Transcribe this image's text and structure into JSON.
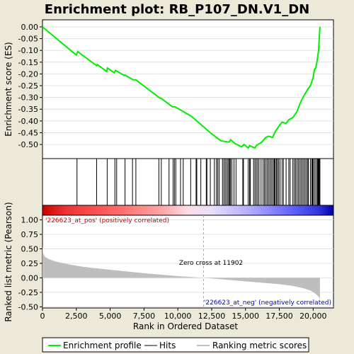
{
  "chart_data": [
    {
      "type": "line",
      "title": "Enrichment plot: RB_P107_DN.V1_DN",
      "ylabel": "Enrichment score (ES)",
      "ylim": [
        -0.56,
        0.03
      ],
      "yticks": [
        "0.00",
        "-0.05",
        "-0.10",
        "-0.15",
        "-0.20",
        "-0.25",
        "-0.30",
        "-0.35",
        "-0.40",
        "-0.45",
        "-0.50"
      ],
      "ytick_values": [
        0.0,
        -0.05,
        -0.1,
        -0.15,
        -0.2,
        -0.25,
        -0.3,
        -0.35,
        -0.4,
        -0.45,
        -0.5
      ],
      "grid": true,
      "series": [
        {
          "name": "Enrichment profile",
          "color": "#00ee00",
          "x": [
            0,
            2500,
            2600,
            4000,
            4050,
            4750,
            4800,
            5300,
            5400,
            6000,
            6100,
            6700,
            6900,
            8600,
            8800,
            9600,
            9800,
            11000,
            12500,
            13200,
            13800,
            13900,
            14200,
            14700,
            14900,
            15200,
            15300,
            15700,
            15800,
            16200,
            16500,
            16700,
            17000,
            17200,
            17500,
            17700,
            18000,
            18200,
            18500,
            18800,
            19000,
            19200,
            19400,
            19600,
            19800,
            20000,
            20100,
            20200,
            20300,
            20400,
            20450,
            20500
          ],
          "y": [
            0.0,
            -0.12,
            -0.105,
            -0.165,
            -0.16,
            -0.19,
            -0.175,
            -0.195,
            -0.185,
            -0.205,
            -0.205,
            -0.225,
            -0.225,
            -0.3,
            -0.305,
            -0.34,
            -0.34,
            -0.38,
            -0.455,
            -0.485,
            -0.49,
            -0.48,
            -0.495,
            -0.51,
            -0.5,
            -0.515,
            -0.505,
            -0.515,
            -0.505,
            -0.49,
            -0.47,
            -0.465,
            -0.47,
            -0.445,
            -0.42,
            -0.405,
            -0.41,
            -0.395,
            -0.385,
            -0.36,
            -0.33,
            -0.305,
            -0.285,
            -0.265,
            -0.25,
            -0.215,
            -0.18,
            -0.175,
            -0.14,
            -0.1,
            -0.05,
            0.0
          ]
        }
      ]
    },
    {
      "type": "scatter",
      "name": "Hits",
      "hits": [
        2550,
        4000,
        4780,
        5350,
        5480,
        6100,
        6650,
        6900,
        8600,
        8780,
        9350,
        9650,
        9750,
        9850,
        10200,
        10400,
        10950,
        11350,
        11400,
        11700,
        12100,
        12150,
        12400,
        12700,
        12850,
        12950,
        13050,
        13300,
        13400,
        13500,
        13600,
        13700,
        13780,
        13850,
        13900,
        14000,
        14150,
        14300,
        14800,
        14850,
        15200,
        15300,
        15350,
        15600,
        15700,
        15800,
        15900,
        16000,
        16150,
        16300,
        16400,
        16500,
        16600,
        16700,
        16800,
        16900,
        17000,
        17100,
        17150,
        17200,
        17300,
        17350,
        17450,
        17550,
        17700,
        17800,
        18000,
        18200,
        18300,
        18500,
        18600,
        18700,
        18800,
        18900,
        19000,
        19100,
        19200,
        19300,
        19400,
        19500,
        19600,
        19650,
        19800,
        19900,
        19950,
        20000,
        20100,
        20200,
        20300,
        20350,
        20400,
        20450,
        20500
      ]
    },
    {
      "type": "area",
      "ylabel": "Ranked list metric (Pearson)",
      "xlabel": "Rank in Ordered Dataset",
      "ylim": [
        -0.5,
        1.0
      ],
      "xlim": [
        0,
        21500
      ],
      "yticks": [
        "1.00",
        "0.75",
        "0.50",
        "0.25",
        "0.00",
        "-0.25",
        "-0.50"
      ],
      "ytick_values": [
        1.0,
        0.75,
        0.5,
        0.25,
        0.0,
        -0.25,
        -0.5
      ],
      "xticks": [
        "0",
        "2,500",
        "5,000",
        "7,500",
        "10,000",
        "12,500",
        "15,000",
        "17,500",
        "20,000"
      ],
      "xtick_values": [
        0,
        2500,
        5000,
        7500,
        10000,
        12500,
        15000,
        17500,
        20000
      ],
      "color": "#bebebe",
      "x": [
        0,
        50,
        200,
        500,
        1000,
        2000,
        3000,
        5000,
        7500,
        10000,
        11902,
        14000,
        16000,
        17500,
        18500,
        19300,
        19800,
        20100,
        20300,
        20450,
        20500
      ],
      "y": [
        0.55,
        0.42,
        0.36,
        0.32,
        0.28,
        0.23,
        0.19,
        0.14,
        0.08,
        0.03,
        0.0,
        -0.04,
        -0.08,
        -0.11,
        -0.14,
        -0.18,
        -0.22,
        -0.26,
        -0.3,
        -0.34,
        -0.38
      ],
      "annotations": {
        "pos": "'226623_at_pos' (positively correlated)",
        "neg": "'226623_at_neg' (negatively correlated)",
        "zero": "Zero cross at 11902"
      },
      "zero_cross": 11902
    }
  ],
  "legend": {
    "items": [
      "Enrichment profile",
      "Hits",
      "Ranking metric scores"
    ],
    "colors": [
      "#00ee00",
      "#000000",
      "#bebebe"
    ]
  }
}
